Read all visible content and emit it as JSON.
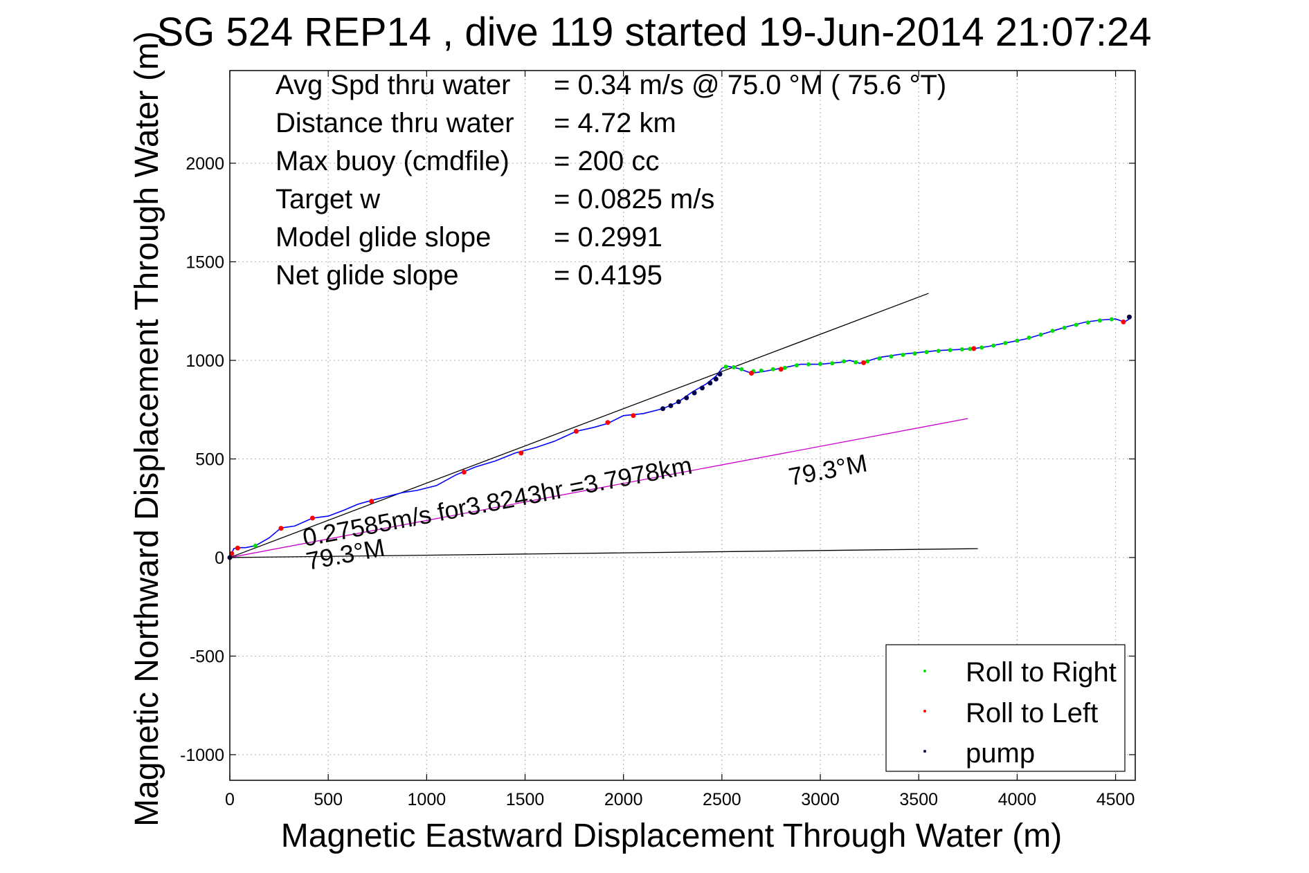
{
  "chart_data": {
    "type": "scatter",
    "title": "SG 524   REP14  , dive 119 started 19-Jun-2014 21:07:24",
    "xlabel": "Magnetic Eastward Displacement Through Water (m)",
    "ylabel": "Magnetic Northward Displacement Through Water (m)",
    "xlim": [
      0,
      4600
    ],
    "ylim": [
      -1130,
      2470
    ],
    "xticks": [
      0,
      500,
      1000,
      1500,
      2000,
      2500,
      3000,
      3500,
      4000,
      4500
    ],
    "yticks": [
      -1000,
      -500,
      0,
      500,
      1000,
      1500,
      2000
    ],
    "grid": true,
    "legend_position": "bottom-right",
    "info_lines": [
      {
        "label": "Avg Spd thru water",
        "value": "=  0.34 m/s @  75.0 °M ( 75.6 °T)"
      },
      {
        "label": "Distance thru water",
        "value": "=  4.72 km"
      },
      {
        "label": "Max buoy (cmdfile)",
        "value": "= 200 cc"
      },
      {
        "label": "Target w",
        "value": "= 0.0825 m/s"
      },
      {
        "label": "Model glide slope",
        "value": "= 0.2991"
      },
      {
        "label": "Net glide slope",
        "value": "= 0.4195"
      }
    ],
    "annotations": {
      "current_text": "0.27585m/s for3.8243hr =3.7978km",
      "current_heading_text": "79.3°M",
      "bottom_heading_text": "79.3°M"
    },
    "reference_lines": [
      {
        "kind": "heading",
        "color": "#000000",
        "x": [
          0,
          3550
        ],
        "y": [
          0,
          1340
        ]
      },
      {
        "kind": "current",
        "color": "#cc00cc",
        "x": [
          0,
          3750
        ],
        "y": [
          0,
          705
        ]
      },
      {
        "kind": "baseline",
        "color": "#000000",
        "x": [
          0,
          3800
        ],
        "y": [
          0,
          45
        ]
      }
    ],
    "track": {
      "color": "#0000ff",
      "x": [
        0,
        20,
        40,
        80,
        130,
        200,
        260,
        330,
        420,
        500,
        580,
        650,
        720,
        800,
        880,
        950,
        1050,
        1150,
        1250,
        1350,
        1450,
        1560,
        1650,
        1760,
        1850,
        1920,
        2000,
        2100,
        2200,
        2280,
        2350,
        2420,
        2470,
        2500,
        2530,
        2580,
        2650,
        2720,
        2800,
        2900,
        3000,
        3100,
        3150,
        3200,
        3250,
        3300,
        3400,
        3500,
        3600,
        3700,
        3780,
        3850,
        3950,
        4050,
        4150,
        4250,
        4350,
        4430,
        4500,
        4545,
        4570
      ],
      "y": [
        0,
        45,
        50,
        50,
        60,
        100,
        150,
        160,
        200,
        210,
        240,
        270,
        290,
        310,
        330,
        340,
        365,
        420,
        460,
        490,
        530,
        560,
        590,
        640,
        660,
        680,
        720,
        730,
        755,
        790,
        840,
        880,
        920,
        960,
        970,
        960,
        935,
        945,
        960,
        980,
        980,
        990,
        1000,
        985,
        1000,
        1015,
        1030,
        1040,
        1050,
        1055,
        1060,
        1070,
        1090,
        1110,
        1140,
        1170,
        1195,
        1205,
        1210,
        1195,
        1210
      ]
    },
    "series": [
      {
        "name": "Roll to Right",
        "color": "#00dd00",
        "x": [
          130,
          2520,
          2560,
          2600,
          2660,
          2700,
          2760,
          2820,
          2880,
          2940,
          3000,
          3060,
          3120,
          3180,
          3240,
          3300,
          3360,
          3420,
          3480,
          3540,
          3600,
          3660,
          3720,
          3760,
          3820,
          3880,
          3940,
          4000,
          4060,
          4120,
          4180,
          4240,
          4300,
          4360,
          4420,
          4480
        ],
        "y": [
          60,
          968,
          965,
          955,
          945,
          948,
          955,
          962,
          975,
          980,
          982,
          985,
          995,
          990,
          995,
          1010,
          1020,
          1028,
          1035,
          1042,
          1048,
          1052,
          1056,
          1058,
          1065,
          1075,
          1088,
          1100,
          1115,
          1130,
          1150,
          1165,
          1180,
          1192,
          1202,
          1208
        ]
      },
      {
        "name": "Roll to Left",
        "color": "#ff0000",
        "x": [
          10,
          40,
          260,
          420,
          720,
          1190,
          1480,
          1760,
          1920,
          2050,
          2650,
          2800,
          3220,
          3780,
          4540
        ],
        "y": [
          20,
          48,
          148,
          200,
          285,
          433,
          530,
          640,
          685,
          720,
          935,
          955,
          988,
          1060,
          1195
        ]
      },
      {
        "name": "pump",
        "color": "#000044",
        "x": [
          0,
          2200,
          2240,
          2280,
          2320,
          2360,
          2400,
          2440,
          2470,
          2490,
          4570
        ],
        "y": [
          0,
          755,
          770,
          790,
          810,
          835,
          860,
          885,
          905,
          930,
          1220
        ]
      }
    ]
  }
}
